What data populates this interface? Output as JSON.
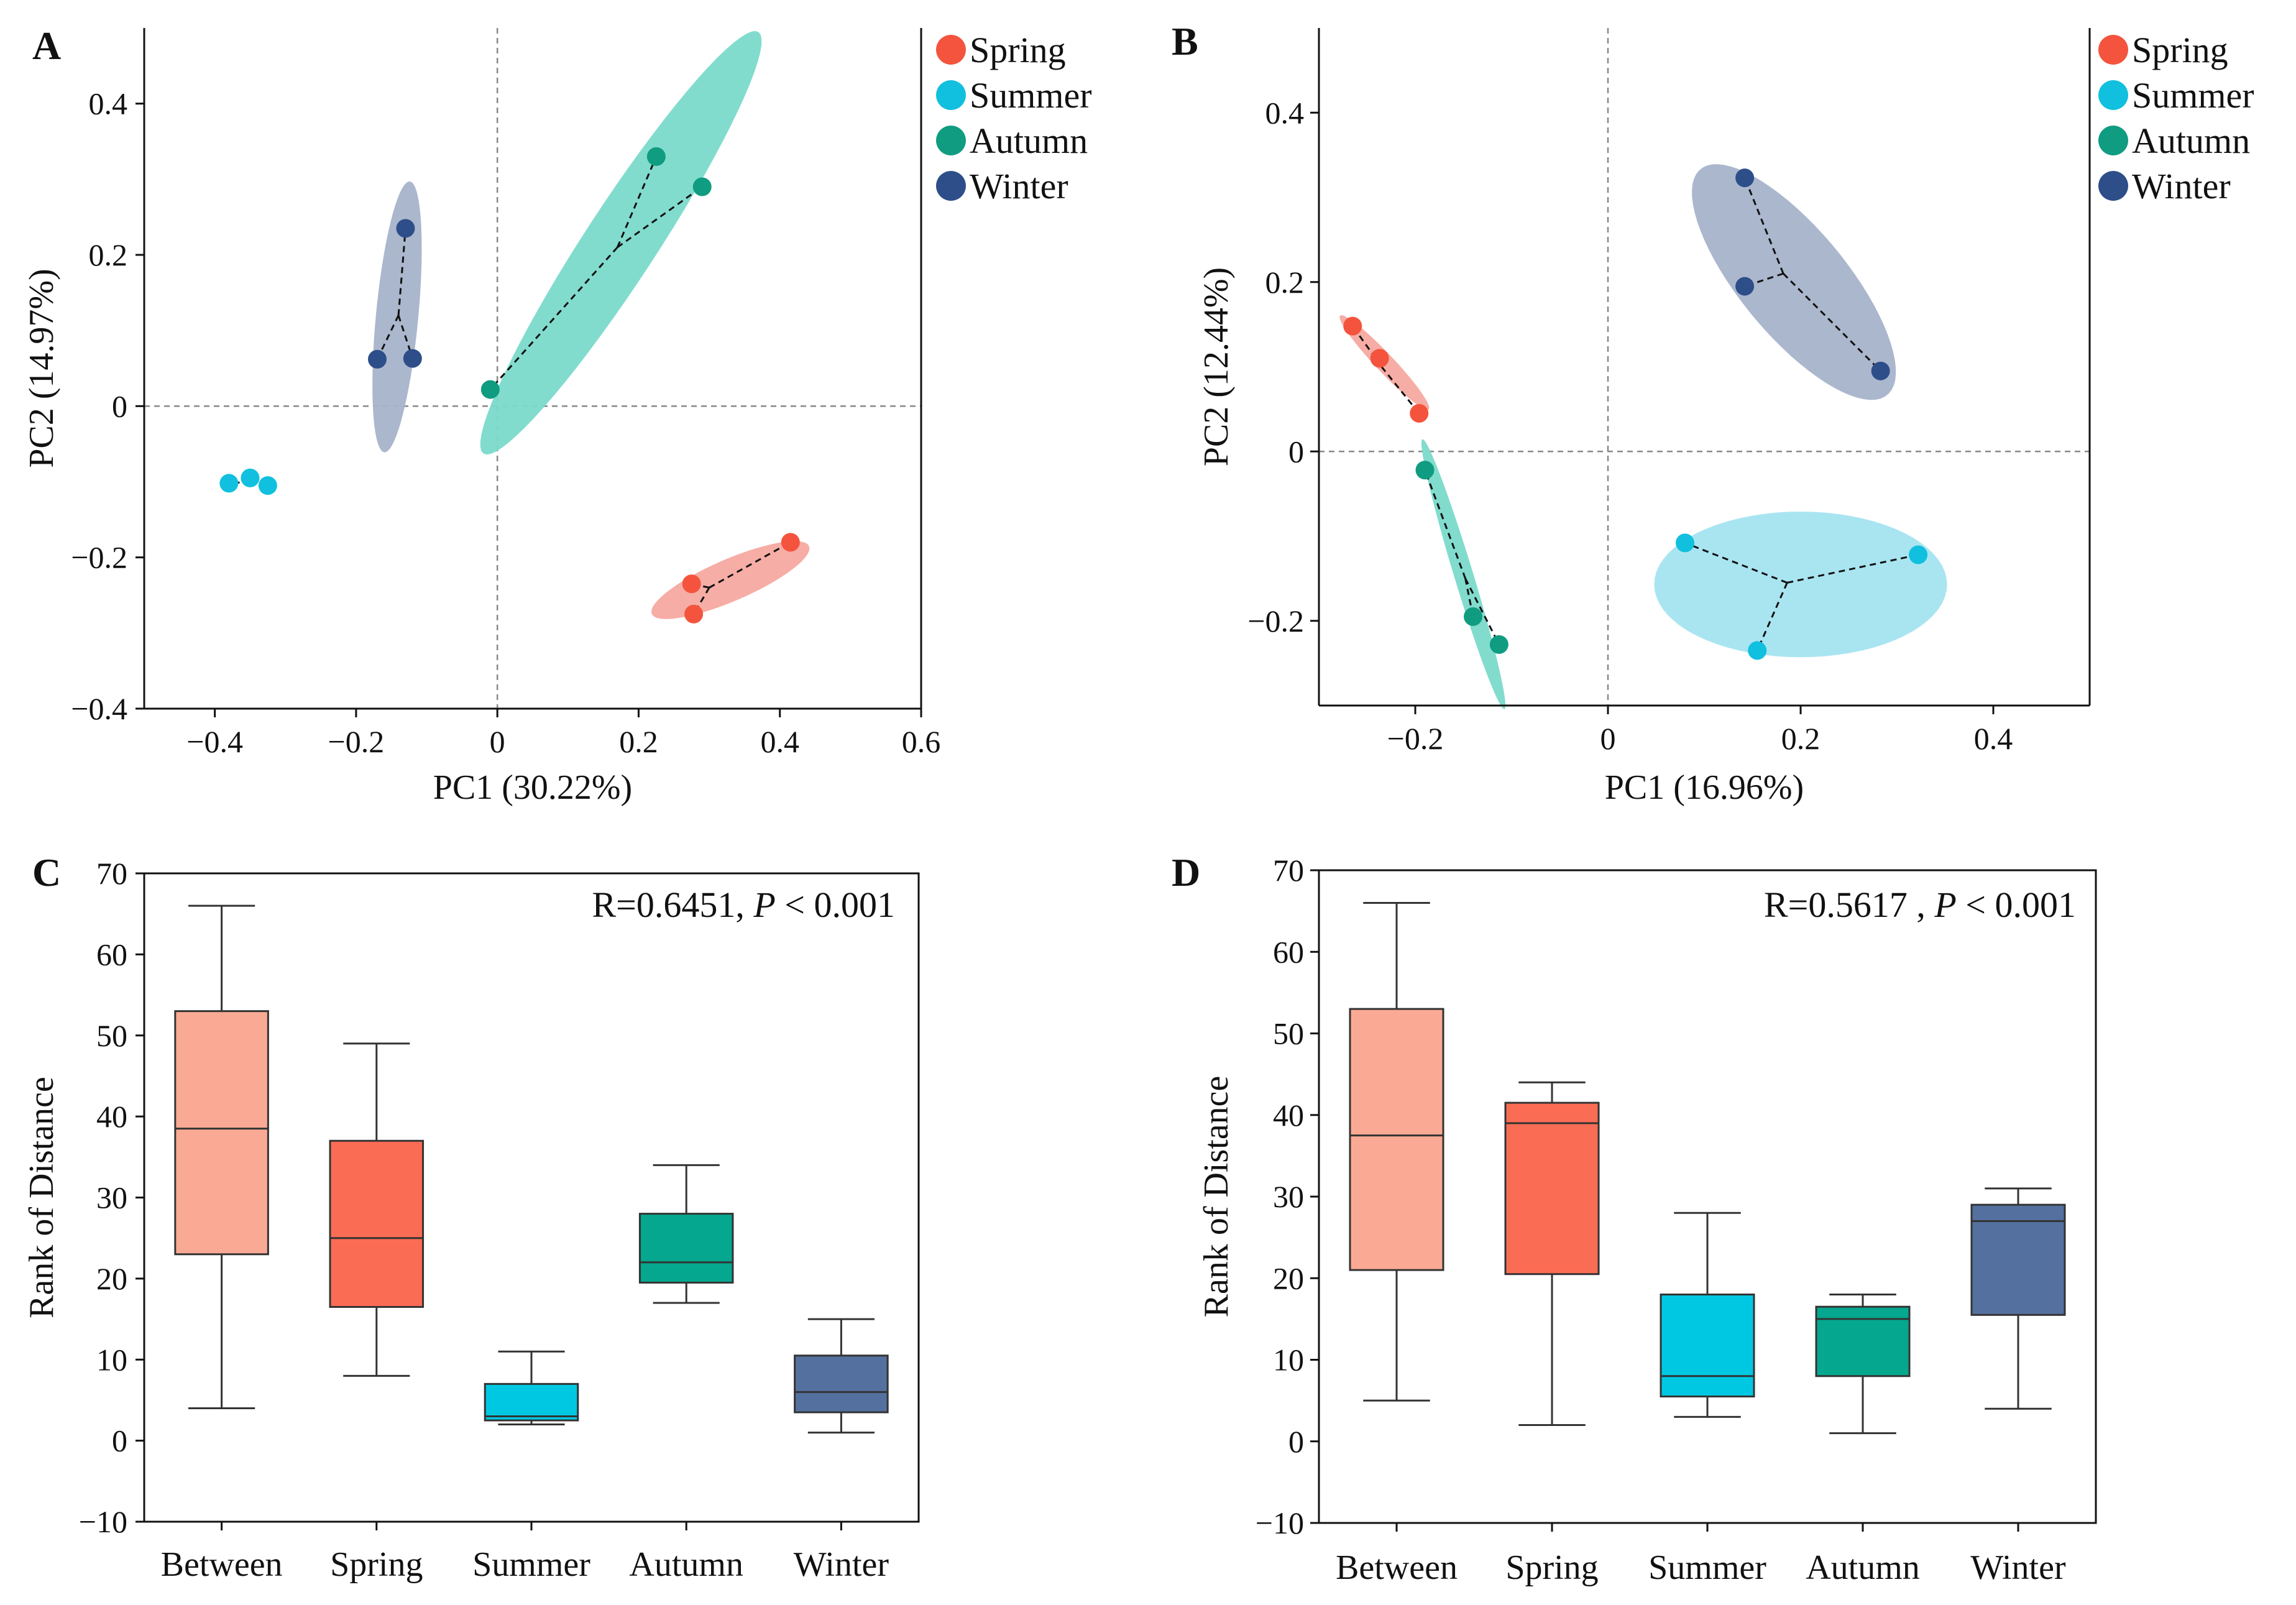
{
  "colors": {
    "spring": "#F4543D",
    "summer": "#10C0DE",
    "autumn": "#109C80",
    "winter": "#2E4E8A",
    "spring_ellipse": "#F6A9A0",
    "summer_ellipse": "#A4E4F0",
    "autumn_ellipse": "#7ADACB",
    "winter_ellipse": "#A7B3CA",
    "box_between": "#FAAA94",
    "box_spring": "#FB6C55",
    "box_summer": "#00C8E2",
    "box_autumn": "#05A88E",
    "box_winter": "#54709F"
  },
  "chart_data": [
    {
      "panel": "A",
      "type": "scatter",
      "xlabel": "PC1 (30.22%)",
      "ylabel": "PC2 (14.97%)",
      "xlim": [
        -0.5,
        0.6
      ],
      "ylim": [
        -0.4,
        0.5
      ],
      "xticks": [
        -0.4,
        -0.2,
        0,
        0.2,
        0.4,
        0.6
      ],
      "yticks": [
        -0.4,
        -0.2,
        0,
        0.2,
        0.4
      ],
      "xtick_labels": [
        "−0.4",
        "−0.2",
        "0",
        "0.2",
        "0.4",
        "0.6"
      ],
      "ytick_labels": [
        "−0.4",
        "−0.2",
        "0",
        "0.2",
        "0.4"
      ],
      "legend": [
        "Spring",
        "Summer",
        "Autumn",
        "Winter"
      ],
      "series": [
        {
          "name": "Spring",
          "points": [
            [
              0.275,
              -0.235
            ],
            [
              0.278,
              -0.275
            ],
            [
              0.415,
              -0.18
            ]
          ],
          "centroid": [
            0.3,
            -0.24
          ],
          "ellipse": {
            "cx": 0.33,
            "cy": -0.23,
            "rx": 0.12,
            "ry": 0.028,
            "angle": 0.38
          }
        },
        {
          "name": "Summer",
          "points": [
            [
              -0.38,
              -0.102
            ],
            [
              -0.35,
              -0.095
            ],
            [
              -0.325,
              -0.105
            ]
          ],
          "centroid": [
            -0.35,
            -0.1
          ],
          "ellipse": null
        },
        {
          "name": "Autumn",
          "points": [
            [
              -0.01,
              0.022
            ],
            [
              0.225,
              0.33
            ],
            [
              0.29,
              0.29
            ]
          ],
          "centroid": [
            0.17,
            0.21
          ],
          "ellipse": {
            "cx": 0.175,
            "cy": 0.216,
            "rx": 0.34,
            "ry": 0.05,
            "angle": 0.96
          }
        },
        {
          "name": "Winter",
          "points": [
            [
              -0.17,
              0.062
            ],
            [
              -0.13,
              0.235
            ],
            [
              -0.12,
              0.063
            ]
          ],
          "centroid": [
            -0.14,
            0.12
          ],
          "ellipse": {
            "cx": -0.142,
            "cy": 0.118,
            "rx": 0.18,
            "ry": 0.03,
            "angle": 1.47
          }
        }
      ]
    },
    {
      "panel": "B",
      "type": "scatter",
      "xlabel": "PC1 (16.96%)",
      "ylabel": "PC2 (12.44%)",
      "xlim": [
        -0.3,
        0.5
      ],
      "ylim": [
        -0.3,
        0.5
      ],
      "xticks": [
        -0.2,
        0,
        0.2,
        0.4
      ],
      "yticks": [
        -0.2,
        0,
        0.2,
        0.4
      ],
      "xtick_labels": [
        "−0.2",
        "0",
        "0.2",
        "0.4"
      ],
      "ytick_labels": [
        "−0.2",
        "0",
        "0.2",
        "0.4"
      ],
      "legend": [
        "Spring",
        "Summer",
        "Autumn",
        "Winter"
      ],
      "series": [
        {
          "name": "Spring",
          "points": [
            [
              -0.265,
              0.148
            ],
            [
              -0.237,
              0.11
            ],
            [
              -0.196,
              0.045
            ]
          ],
          "centroid": [
            -0.235,
            0.1
          ],
          "ellipse": {
            "cx": -0.232,
            "cy": 0.105,
            "rx": 0.072,
            "ry": 0.01,
            "angle": -0.88
          }
        },
        {
          "name": "Summer",
          "points": [
            [
              0.08,
              -0.108
            ],
            [
              0.155,
              -0.235
            ],
            [
              0.322,
              -0.122
            ]
          ],
          "centroid": [
            0.186,
            -0.155
          ],
          "ellipse": {
            "cx": 0.2,
            "cy": -0.157,
            "rx": 0.152,
            "ry": 0.086,
            "angle": 0
          }
        },
        {
          "name": "Autumn",
          "points": [
            [
              -0.19,
              -0.022
            ],
            [
              -0.14,
              -0.195
            ],
            [
              -0.113,
              -0.228
            ]
          ],
          "centroid": [
            -0.148,
            -0.15
          ],
          "ellipse": {
            "cx": -0.15,
            "cy": -0.145,
            "rx": 0.165,
            "ry": 0.01,
            "angle": -1.31
          }
        },
        {
          "name": "Winter",
          "points": [
            [
              0.142,
              0.323
            ],
            [
              0.142,
              0.195
            ],
            [
              0.283,
              0.095
            ]
          ],
          "centroid": [
            0.182,
            0.21
          ],
          "ellipse": {
            "cx": 0.193,
            "cy": 0.2,
            "rx": 0.165,
            "ry": 0.058,
            "angle": -0.96
          }
        }
      ]
    },
    {
      "panel": "C",
      "type": "box",
      "ylabel": "Rank of Distance",
      "ylim": [
        -10,
        70
      ],
      "yticks": [
        -10,
        0,
        10,
        20,
        30,
        40,
        50,
        60,
        70
      ],
      "ytick_labels": [
        "−10",
        "0",
        "10",
        "20",
        "30",
        "40",
        "50",
        "60",
        "70"
      ],
      "categories": [
        "Between",
        "Spring",
        "Summer",
        "Autumn",
        "Winter"
      ],
      "stat_text": "R=0.6451, P < 0.001",
      "stat_r": "R=0.6451, ",
      "stat_p": "P",
      "stat_rest": " < 0.001",
      "boxes": [
        {
          "min": 4,
          "q1": 23,
          "median": 38.5,
          "q3": 53,
          "max": 66
        },
        {
          "min": 8,
          "q1": 16.5,
          "median": 25,
          "q3": 37,
          "max": 49
        },
        {
          "min": 2,
          "q1": 2.5,
          "median": 3,
          "q3": 7,
          "max": 11
        },
        {
          "min": 17,
          "q1": 19.5,
          "median": 22,
          "q3": 28,
          "max": 34
        },
        {
          "min": 1,
          "q1": 3.5,
          "median": 6,
          "q3": 10.5,
          "max": 15
        }
      ]
    },
    {
      "panel": "D",
      "type": "box",
      "ylabel": "Rank of Distance",
      "ylim": [
        -10,
        70
      ],
      "yticks": [
        -10,
        0,
        10,
        20,
        30,
        40,
        50,
        60,
        70
      ],
      "ytick_labels": [
        "−10",
        "0",
        "10",
        "20",
        "30",
        "40",
        "50",
        "60",
        "70"
      ],
      "categories": [
        "Between",
        "Spring",
        "Summer",
        "Autumn",
        "Winter"
      ],
      "stat_text": "R=0.5617 , P < 0.001",
      "stat_r": "R=0.5617 , ",
      "stat_p": "P",
      "stat_rest": " < 0.001",
      "boxes": [
        {
          "min": 5,
          "q1": 21,
          "median": 37.5,
          "q3": 53,
          "max": 66
        },
        {
          "min": 2,
          "q1": 20.5,
          "median": 39,
          "q3": 41.5,
          "max": 44
        },
        {
          "min": 3,
          "q1": 5.5,
          "median": 8,
          "q3": 18,
          "max": 28
        },
        {
          "min": 1,
          "q1": 8,
          "median": 15,
          "q3": 16.5,
          "max": 18
        },
        {
          "min": 4,
          "q1": 15.5,
          "median": 27,
          "q3": 29,
          "max": 31
        }
      ]
    }
  ]
}
